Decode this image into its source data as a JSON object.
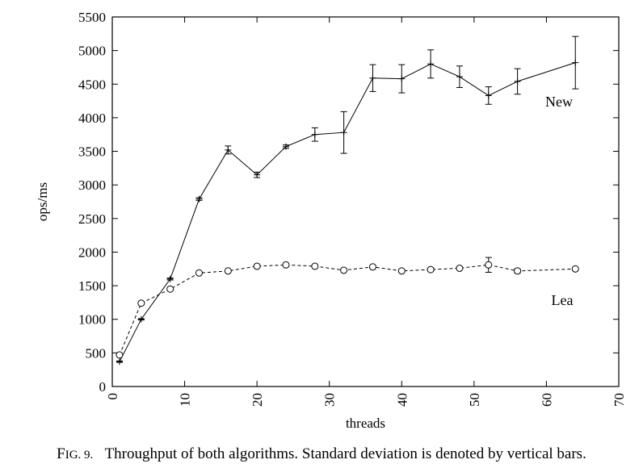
{
  "chart_data": {
    "type": "line",
    "xlabel": "threads",
    "ylabel": "ops/ms",
    "xlim": [
      0,
      70
    ],
    "ylim": [
      0,
      5500
    ],
    "x_ticks": [
      0,
      10,
      20,
      30,
      40,
      50,
      60,
      70
    ],
    "y_ticks": [
      0,
      500,
      1000,
      1500,
      2000,
      2500,
      3000,
      3500,
      4000,
      4500,
      5000,
      5500
    ],
    "grid": false,
    "series": [
      {
        "name": "New",
        "line_style": "solid",
        "marker": "plus",
        "x": [
          1,
          4,
          8,
          12,
          16,
          20,
          24,
          28,
          32,
          36,
          40,
          44,
          48,
          52,
          56,
          64
        ],
        "y": [
          370,
          1000,
          1600,
          2790,
          3520,
          3150,
          3570,
          3750,
          3780,
          4590,
          4580,
          4800,
          4610,
          4330,
          4540,
          4820
        ],
        "err": [
          10,
          10,
          15,
          20,
          60,
          40,
          25,
          100,
          310,
          200,
          210,
          210,
          160,
          130,
          190,
          390
        ]
      },
      {
        "name": "Lea",
        "line_style": "dashed",
        "marker": "circle",
        "x": [
          1,
          4,
          8,
          12,
          16,
          20,
          24,
          28,
          32,
          36,
          40,
          44,
          48,
          52,
          56,
          64
        ],
        "y": [
          470,
          1240,
          1450,
          1690,
          1720,
          1790,
          1810,
          1790,
          1730,
          1780,
          1720,
          1740,
          1760,
          1810,
          1720,
          1750
        ],
        "err": [
          10,
          10,
          10,
          15,
          15,
          20,
          20,
          20,
          20,
          25,
          20,
          25,
          20,
          110,
          30,
          20
        ]
      }
    ]
  },
  "caption": {
    "fig_prefix_f": "F",
    "fig_prefix_rest": "IG. 9.",
    "text": "Throughput of both algorithms. Standard deviation is denoted by vertical bars."
  }
}
